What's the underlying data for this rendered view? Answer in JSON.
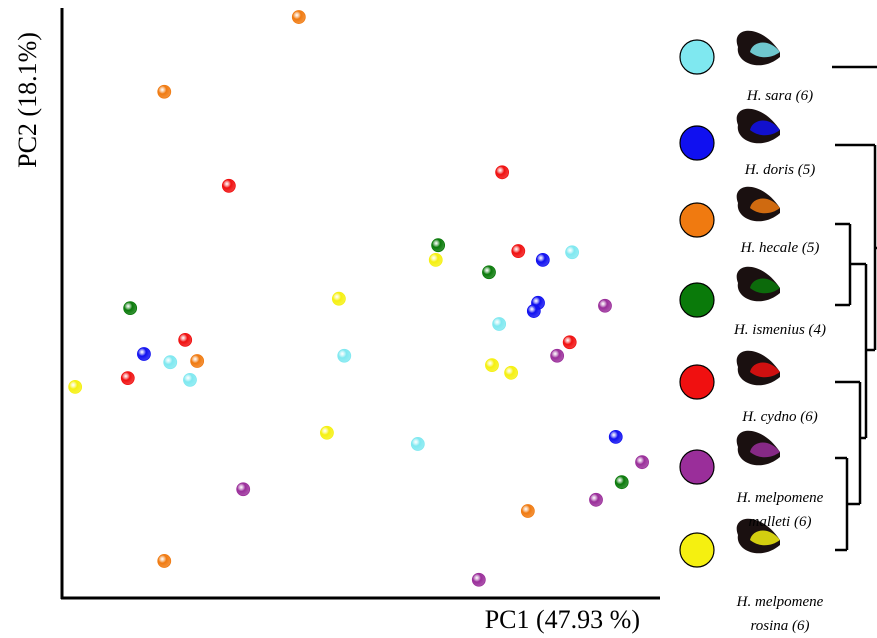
{
  "chart_data": {
    "type": "scatter",
    "x_label": "PC1 (47.93 %)",
    "y_label": "PC2 (18.1%)",
    "xlim": [
      0,
      100
    ],
    "ylim": [
      0,
      100
    ],
    "series": [
      {
        "name": "H. sara (6)",
        "color": "#7fe8f0",
        "x": [
          18.1,
          21.4,
          47.2,
          73.1,
          85.3,
          59.5
        ],
        "y": [
          40.1,
          37.1,
          41.2,
          46.6,
          58.8,
          26.2
        ]
      },
      {
        "name": "H. doris (5)",
        "color": "#1010f0",
        "x": [
          13.7,
          80.4,
          79.6,
          78.9,
          92.6
        ],
        "y": [
          41.5,
          57.5,
          50.2,
          48.8,
          27.4
        ]
      },
      {
        "name": "H. hecale (5)",
        "color": "#f07a10",
        "x": [
          39.6,
          17.1,
          22.6,
          77.9,
          17.1
        ],
        "y": [
          98.8,
          86.1,
          40.3,
          14.8,
          6.3
        ]
      },
      {
        "name": "H. ismenius (4)",
        "color": "#0a7a0a",
        "x": [
          11.4,
          62.9,
          71.4,
          93.6
        ],
        "y": [
          49.3,
          60.0,
          55.4,
          19.7
        ]
      },
      {
        "name": "H. cydno (6)",
        "color": "#f01010",
        "x": [
          27.9,
          73.6,
          76.3,
          20.6,
          11.0,
          84.9
        ],
        "y": [
          70.1,
          72.4,
          59.0,
          43.9,
          37.4,
          43.5
        ]
      },
      {
        "name": "H. melpomene\nmalleti (6)",
        "color": "#9a2e9a",
        "x": [
          90.8,
          82.8,
          97.0,
          89.3,
          30.3,
          69.7
        ],
        "y": [
          49.7,
          41.2,
          23.1,
          16.7,
          18.5,
          3.1
        ]
      },
      {
        "name": "H. melpomene\nrosina (6)",
        "color": "#f5f010",
        "x": [
          2.2,
          46.3,
          62.5,
          71.9,
          75.1,
          44.3
        ],
        "y": [
          35.9,
          50.9,
          57.5,
          39.6,
          38.3,
          28.1
        ]
      }
    ]
  }
}
